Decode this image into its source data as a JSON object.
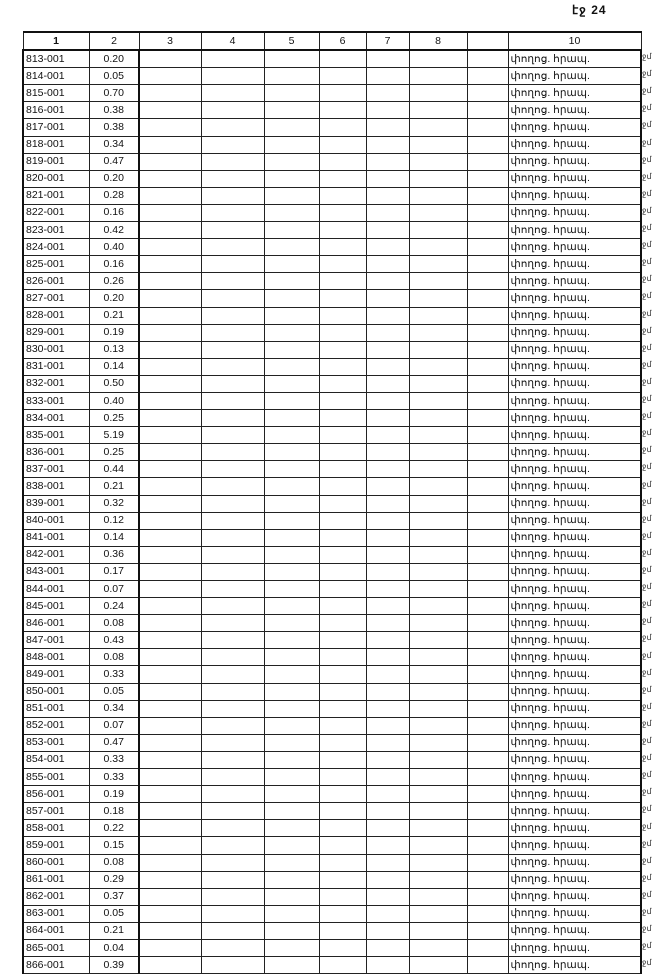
{
  "page_number": "էջ 24",
  "columns": [
    "1",
    "2",
    "3",
    "4",
    "5",
    "6",
    "7",
    "8",
    "",
    "10"
  ],
  "row_note": "փողոց. հրապ.",
  "margin_mark": "ջմ",
  "rows": [
    [
      "813-001",
      "0.20"
    ],
    [
      "814-001",
      "0.05"
    ],
    [
      "815-001",
      "0.70"
    ],
    [
      "816-001",
      "0.38"
    ],
    [
      "817-001",
      "0.38"
    ],
    [
      "818-001",
      "0.34"
    ],
    [
      "819-001",
      "0.47"
    ],
    [
      "820-001",
      "0.20"
    ],
    [
      "821-001",
      "0.28"
    ],
    [
      "822-001",
      "0.16"
    ],
    [
      "823-001",
      "0.42"
    ],
    [
      "824-001",
      "0.40"
    ],
    [
      "825-001",
      "0.16"
    ],
    [
      "826-001",
      "0.26"
    ],
    [
      "827-001",
      "0.20"
    ],
    [
      "828-001",
      "0.21"
    ],
    [
      "829-001",
      "0.19"
    ],
    [
      "830-001",
      "0.13"
    ],
    [
      "831-001",
      "0.14"
    ],
    [
      "832-001",
      "0.50"
    ],
    [
      "833-001",
      "0.40"
    ],
    [
      "834-001",
      "0.25"
    ],
    [
      "835-001",
      "5.19"
    ],
    [
      "836-001",
      "0.25"
    ],
    [
      "837-001",
      "0.44"
    ],
    [
      "838-001",
      "0.21"
    ],
    [
      "839-001",
      "0.32"
    ],
    [
      "840-001",
      "0.12"
    ],
    [
      "841-001",
      "0.14"
    ],
    [
      "842-001",
      "0.36"
    ],
    [
      "843-001",
      "0.17"
    ],
    [
      "844-001",
      "0.07"
    ],
    [
      "845-001",
      "0.24"
    ],
    [
      "846-001",
      "0.08"
    ],
    [
      "847-001",
      "0.43"
    ],
    [
      "848-001",
      "0.08"
    ],
    [
      "849-001",
      "0.33"
    ],
    [
      "850-001",
      "0.05"
    ],
    [
      "851-001",
      "0.34"
    ],
    [
      "852-001",
      "0.07"
    ],
    [
      "853-001",
      "0.47"
    ],
    [
      "854-001",
      "0.33"
    ],
    [
      "855-001",
      "0.33"
    ],
    [
      "856-001",
      "0.19"
    ],
    [
      "857-001",
      "0.18"
    ],
    [
      "858-001",
      "0.22"
    ],
    [
      "859-001",
      "0.15"
    ],
    [
      "860-001",
      "0.08"
    ],
    [
      "861-001",
      "0.29"
    ],
    [
      "862-001",
      "0.37"
    ],
    [
      "863-001",
      "0.05"
    ],
    [
      "864-001",
      "0.21"
    ],
    [
      "865-001",
      "0.04"
    ],
    [
      "866-001",
      "0.39"
    ]
  ]
}
